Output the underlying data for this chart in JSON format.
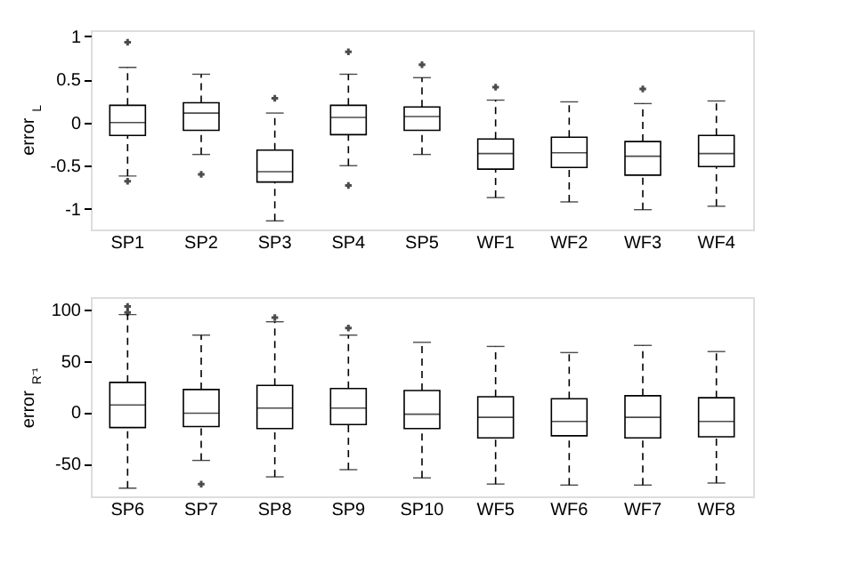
{
  "chart_data": [
    {
      "type": "box",
      "ylabel": "error$_{L}$",
      "categories": [
        "SP1",
        "SP2",
        "SP3",
        "SP4",
        "SP5",
        "WF1",
        "WF2",
        "WF3",
        "WF4"
      ],
      "ylim": [
        -1.24,
        1.07
      ],
      "yticks": [
        -1,
        -0.5,
        0,
        0.5,
        1
      ],
      "grid": false,
      "boxes": [
        {
          "low": -0.62,
          "q1": -0.15,
          "median": 0.0,
          "q3": 0.2,
          "high": 0.64,
          "outliers": [
            0.93,
            -0.68
          ]
        },
        {
          "low": -0.37,
          "q1": -0.09,
          "median": 0.11,
          "q3": 0.23,
          "high": 0.56,
          "outliers": [
            -0.6
          ]
        },
        {
          "low": -1.14,
          "q1": -0.69,
          "median": -0.57,
          "q3": -0.32,
          "high": 0.11,
          "outliers": [
            0.28
          ]
        },
        {
          "low": -0.5,
          "q1": -0.14,
          "median": 0.06,
          "q3": 0.2,
          "high": 0.56,
          "outliers": [
            0.82,
            -0.73
          ]
        },
        {
          "low": -0.37,
          "q1": -0.09,
          "median": 0.07,
          "q3": 0.18,
          "high": 0.52,
          "outliers": [
            0.67
          ]
        },
        {
          "low": -0.87,
          "q1": -0.54,
          "median": -0.36,
          "q3": -0.19,
          "high": 0.26,
          "outliers": [
            0.41
          ]
        },
        {
          "low": -0.92,
          "q1": -0.52,
          "median": -0.35,
          "q3": -0.17,
          "high": 0.24
        },
        {
          "low": -1.01,
          "q1": -0.61,
          "median": -0.39,
          "q3": -0.22,
          "high": 0.22,
          "outliers": [
            0.39
          ]
        },
        {
          "low": -0.97,
          "q1": -0.51,
          "median": -0.36,
          "q3": -0.15,
          "high": 0.25
        }
      ]
    },
    {
      "type": "box",
      "ylabel": "error$_{R⁻¹}$",
      "categories": [
        "SP6",
        "SP7",
        "SP8",
        "SP9",
        "SP10",
        "WF5",
        "WF6",
        "WF7",
        "WF8"
      ],
      "ylim": [
        -82,
        112
      ],
      "yticks": [
        -50,
        0,
        50,
        100
      ],
      "grid": false,
      "boxes": [
        {
          "low": -74,
          "q1": -15,
          "median": 7,
          "q3": 29,
          "high": 95,
          "outliers": [
            103,
            97
          ]
        },
        {
          "low": -47,
          "q1": -14,
          "median": -1,
          "q3": 22,
          "high": 75,
          "outliers": [
            -70
          ]
        },
        {
          "low": -63,
          "q1": -16,
          "median": 4,
          "q3": 26,
          "high": 88,
          "outliers": [
            92
          ]
        },
        {
          "low": -56,
          "q1": -12,
          "median": 4,
          "q3": 23,
          "high": 75,
          "outliers": [
            82
          ]
        },
        {
          "low": -64,
          "q1": -16,
          "median": -2,
          "q3": 21,
          "high": 68
        },
        {
          "low": -70,
          "q1": -25,
          "median": -5,
          "q3": 15,
          "high": 64
        },
        {
          "low": -71,
          "q1": -23,
          "median": -9,
          "q3": 13,
          "high": 58
        },
        {
          "low": -71,
          "q1": -25,
          "median": -5,
          "q3": 16,
          "high": 65
        },
        {
          "low": -69,
          "q1": -24,
          "median": -9,
          "q3": 14,
          "high": 59
        }
      ]
    }
  ]
}
